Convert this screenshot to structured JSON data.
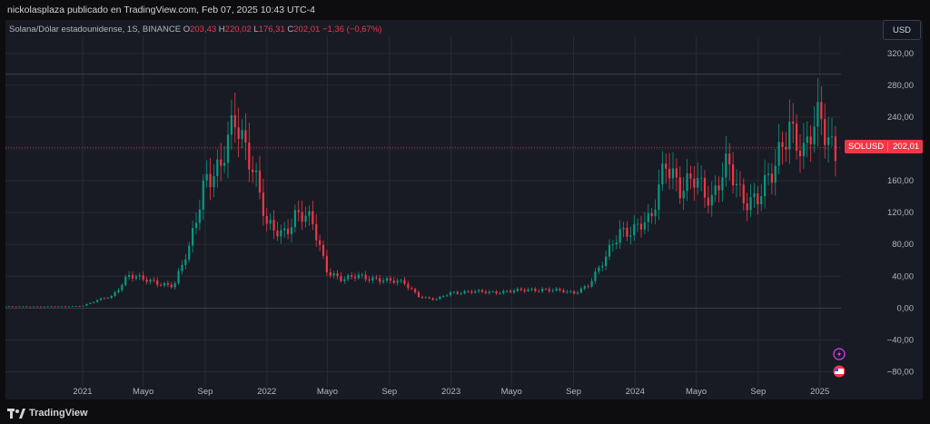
{
  "header": {
    "published_by": "nickolasplaza publicado en TradingView.com, Feb 07, 2025 10:43 UTC-4"
  },
  "legend": {
    "title": "Solana/Dólar estadounidense, 1S, BINANCE",
    "o_label": "O",
    "o_value": "203,43",
    "h_label": "H",
    "h_value": "220,02",
    "l_label": "L",
    "l_value": "176,31",
    "c_label": "C",
    "c_value": "202,01",
    "change": "−1,36 (−0,67%)"
  },
  "currency_button": "USD",
  "price_tag": {
    "symbol": "SOLUSD",
    "value": "202,01"
  },
  "footer": {
    "brand": "TradingView"
  },
  "colors": {
    "up": "#089981",
    "down": "#f23645",
    "background": "#181b24",
    "grid": "#262a35"
  },
  "icons": [
    "lightning-icon",
    "us-flag-icon"
  ],
  "chart_data": {
    "type": "candlestick",
    "title": "Solana/Dólar estadounidense, 1S, BINANCE",
    "ylim": [
      -100,
      330
    ],
    "y_ticks": [
      320,
      280,
      240,
      200,
      160,
      120,
      80,
      40,
      0,
      -40,
      -80
    ],
    "y_tick_labels": [
      "320,00",
      "280,00",
      "240,00",
      "200,00",
      "160,00",
      "120,00",
      "80,00",
      "40,00",
      "0,00",
      "−40,00",
      "−80,00"
    ],
    "x_ticks": [
      "2021",
      "Mayo",
      "Sep",
      "2022",
      "Mayo",
      "Sep",
      "2023",
      "Mayo",
      "Sep",
      "2024",
      "Mayo",
      "Sep",
      "2025"
    ],
    "x_tick_dates": [
      "2021-01",
      "2021-05",
      "2021-09",
      "2022-01",
      "2022-05",
      "2022-09",
      "2023-01",
      "2023-05",
      "2023-09",
      "2024-01",
      "2024-05",
      "2024-09",
      "2025-01"
    ],
    "last_price": 202.01,
    "high_line": 294,
    "key_points": [
      {
        "date": "2020-08",
        "price": 2
      },
      {
        "date": "2020-12",
        "price": 2
      },
      {
        "date": "2021-01",
        "price": 3
      },
      {
        "date": "2021-02",
        "price": 10
      },
      {
        "date": "2021-03",
        "price": 15
      },
      {
        "date": "2021-04",
        "price": 42
      },
      {
        "date": "2021-05",
        "price": 35
      },
      {
        "date": "2021-06",
        "price": 32
      },
      {
        "date": "2021-07",
        "price": 28
      },
      {
        "date": "2021-08",
        "price": 75
      },
      {
        "date": "2021-09",
        "price": 170
      },
      {
        "date": "2021-10",
        "price": 170
      },
      {
        "date": "2021-11",
        "price": 240
      },
      {
        "date": "2021-12",
        "price": 190
      },
      {
        "date": "2022-01",
        "price": 100
      },
      {
        "date": "2022-02",
        "price": 95
      },
      {
        "date": "2022-03",
        "price": 120
      },
      {
        "date": "2022-04",
        "price": 105
      },
      {
        "date": "2022-05",
        "price": 48
      },
      {
        "date": "2022-06",
        "price": 35
      },
      {
        "date": "2022-07",
        "price": 40
      },
      {
        "date": "2022-08",
        "price": 38
      },
      {
        "date": "2022-09",
        "price": 33
      },
      {
        "date": "2022-10",
        "price": 32
      },
      {
        "date": "2022-11",
        "price": 14
      },
      {
        "date": "2022-12",
        "price": 10
      },
      {
        "date": "2023-01",
        "price": 20
      },
      {
        "date": "2023-03",
        "price": 20
      },
      {
        "date": "2023-05",
        "price": 21
      },
      {
        "date": "2023-07",
        "price": 24
      },
      {
        "date": "2023-09",
        "price": 19
      },
      {
        "date": "2023-10",
        "price": 30
      },
      {
        "date": "2023-11",
        "price": 58
      },
      {
        "date": "2023-12",
        "price": 100
      },
      {
        "date": "2024-01",
        "price": 98
      },
      {
        "date": "2024-02",
        "price": 108
      },
      {
        "date": "2024-03",
        "price": 195
      },
      {
        "date": "2024-04",
        "price": 140
      },
      {
        "date": "2024-05",
        "price": 165
      },
      {
        "date": "2024-06",
        "price": 140
      },
      {
        "date": "2024-07",
        "price": 175
      },
      {
        "date": "2024-08",
        "price": 140
      },
      {
        "date": "2024-09",
        "price": 140
      },
      {
        "date": "2024-10",
        "price": 165
      },
      {
        "date": "2024-11",
        "price": 240
      },
      {
        "date": "2024-12",
        "price": 190
      },
      {
        "date": "2025-01",
        "price": 240
      },
      {
        "date": "2025-02",
        "price": 202
      }
    ]
  }
}
